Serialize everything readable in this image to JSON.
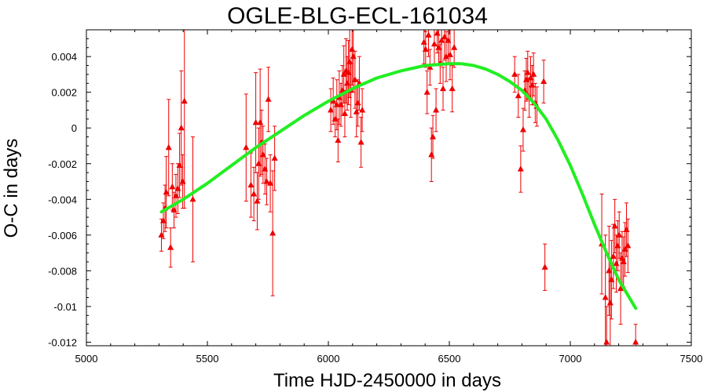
{
  "chart_data": {
    "type": "scatter",
    "title": "OGLE-BLG-ECL-161034",
    "xlabel": "Time HJD-2450000 in days",
    "ylabel": "O-C in days",
    "xlim": [
      5000,
      7500
    ],
    "ylim": [
      -0.0122,
      0.0055
    ],
    "x_ticks": [
      "5000",
      "5500",
      "6000",
      "6500",
      "7000",
      "7500"
    ],
    "y_ticks": [
      "0.004",
      "0.002",
      "0",
      "-0.002",
      "-0.004",
      "-0.006",
      "-0.008",
      "-0.01",
      "-0.012"
    ],
    "grid": false,
    "colors": {
      "points": "#ee0000",
      "fit": "#22ee22",
      "axes": "#000000"
    },
    "series": [
      {
        "marker": "triangle",
        "error_bars": true,
        "points": [
          {
            "x": 5310,
            "y": -0.006,
            "err": 0.0009
          },
          {
            "x": 5318,
            "y": -0.0052,
            "err": 0.001
          },
          {
            "x": 5325,
            "y": -0.0045,
            "err": 0.0013
          },
          {
            "x": 5330,
            "y": -0.0036,
            "err": 0.002
          },
          {
            "x": 5340,
            "y": -0.0011,
            "err": 0.0027
          },
          {
            "x": 5348,
            "y": -0.0067,
            "err": 0.0011
          },
          {
            "x": 5355,
            "y": -0.0033,
            "err": 0.0013
          },
          {
            "x": 5362,
            "y": -0.0046,
            "err": 0.001
          },
          {
            "x": 5370,
            "y": -0.0038,
            "err": 0.0012
          },
          {
            "x": 5378,
            "y": -0.0034,
            "err": 0.0014
          },
          {
            "x": 5385,
            "y": -0.0021,
            "err": 0.0018
          },
          {
            "x": 5392,
            "y": 0.0,
            "err": 0.0032
          },
          {
            "x": 5398,
            "y": -0.003,
            "err": 0.0015
          },
          {
            "x": 5405,
            "y": 0.0015,
            "err": 0.006
          },
          {
            "x": 5440,
            "y": -0.004,
            "err": 0.0035
          },
          {
            "x": 5660,
            "y": -0.0011,
            "err": 0.003
          },
          {
            "x": 5680,
            "y": -0.0032,
            "err": 0.0018
          },
          {
            "x": 5692,
            "y": -0.0037,
            "err": 0.0015
          },
          {
            "x": 5700,
            "y": 0.0003,
            "err": 0.0028
          },
          {
            "x": 5706,
            "y": -0.0041,
            "err": 0.0016
          },
          {
            "x": 5712,
            "y": -0.002,
            "err": 0.002
          },
          {
            "x": 5718,
            "y": 0.0003,
            "err": 0.003
          },
          {
            "x": 5724,
            "y": -0.0008,
            "err": 0.0018
          },
          {
            "x": 5730,
            "y": -0.0015,
            "err": 0.0016
          },
          {
            "x": 5738,
            "y": -0.0023,
            "err": 0.0014
          },
          {
            "x": 5745,
            "y": -0.003,
            "err": 0.0013
          },
          {
            "x": 5752,
            "y": 0.0016,
            "err": 0.0018
          },
          {
            "x": 5760,
            "y": -0.0031,
            "err": 0.0016
          },
          {
            "x": 5770,
            "y": -0.0059,
            "err": 0.0035
          },
          {
            "x": 5778,
            "y": -0.0017,
            "err": 0.0018
          },
          {
            "x": 6010,
            "y": 0.001,
            "err": 0.0012
          },
          {
            "x": 6020,
            "y": 0.0015,
            "err": 0.0013
          },
          {
            "x": 6028,
            "y": 0.0005,
            "err": 0.001
          },
          {
            "x": 6035,
            "y": 0.0013,
            "err": 0.0014
          },
          {
            "x": 6040,
            "y": -0.0007,
            "err": 0.0012
          },
          {
            "x": 6045,
            "y": 0.0017,
            "err": 0.0015
          },
          {
            "x": 6052,
            "y": 0.0013,
            "err": 0.0012
          },
          {
            "x": 6058,
            "y": 0.0021,
            "err": 0.0014
          },
          {
            "x": 6064,
            "y": 0.003,
            "err": 0.0016
          },
          {
            "x": 6068,
            "y": 0.0008,
            "err": 0.0013
          },
          {
            "x": 6073,
            "y": 0.0032,
            "err": 0.0018
          },
          {
            "x": 6078,
            "y": 0.0025,
            "err": 0.0015
          },
          {
            "x": 6083,
            "y": 0.0031,
            "err": 0.0018
          },
          {
            "x": 6088,
            "y": 0.0037,
            "err": 0.002
          },
          {
            "x": 6093,
            "y": 0.0021,
            "err": 0.0015
          },
          {
            "x": 6098,
            "y": 0.0044,
            "err": 0.002
          },
          {
            "x": 6103,
            "y": 0.004,
            "err": 0.002
          },
          {
            "x": 6110,
            "y": 0.0027,
            "err": 0.0016
          },
          {
            "x": 6116,
            "y": 0.0009,
            "err": 0.0014
          },
          {
            "x": 6122,
            "y": 0.0014,
            "err": 0.0013
          },
          {
            "x": 6128,
            "y": 0.0025,
            "err": 0.0015
          },
          {
            "x": 6135,
            "y": -0.0008,
            "err": 0.0014
          },
          {
            "x": 6140,
            "y": 0.001,
            "err": 0.0012
          },
          {
            "x": 6395,
            "y": 0.0048,
            "err": 0.0012
          },
          {
            "x": 6402,
            "y": 0.0044,
            "err": 0.001
          },
          {
            "x": 6408,
            "y": 0.002,
            "err": 0.0012
          },
          {
            "x": 6414,
            "y": 0.0052,
            "err": 0.0012
          },
          {
            "x": 6420,
            "y": 0.0034,
            "err": 0.001
          },
          {
            "x": 6426,
            "y": -0.0015,
            "err": 0.0015
          },
          {
            "x": 6432,
            "y": -0.0005,
            "err": 0.0012
          },
          {
            "x": 6438,
            "y": 0.0047,
            "err": 0.0011
          },
          {
            "x": 6445,
            "y": 0.001,
            "err": 0.0012
          },
          {
            "x": 6450,
            "y": 0.0053,
            "err": 0.0011
          },
          {
            "x": 6456,
            "y": 0.0045,
            "err": 0.001
          },
          {
            "x": 6462,
            "y": 0.0036,
            "err": 0.0011
          },
          {
            "x": 6468,
            "y": 0.0049,
            "err": 0.0012
          },
          {
            "x": 6474,
            "y": 0.0022,
            "err": 0.0012
          },
          {
            "x": 6480,
            "y": 0.0051,
            "err": 0.0013
          },
          {
            "x": 6487,
            "y": 0.004,
            "err": 0.0014
          },
          {
            "x": 6495,
            "y": 0.0049,
            "err": 0.0013
          },
          {
            "x": 6503,
            "y": 0.0041,
            "err": 0.0014
          },
          {
            "x": 6512,
            "y": 0.0022,
            "err": 0.0013
          },
          {
            "x": 6520,
            "y": 0.0045,
            "err": 0.0011
          },
          {
            "x": 6770,
            "y": 0.003,
            "err": 0.001
          },
          {
            "x": 6785,
            "y": 0.0018,
            "err": 0.0012
          },
          {
            "x": 6795,
            "y": -0.0023,
            "err": 0.0013
          },
          {
            "x": 6805,
            "y": -0.0001,
            "err": 0.0012
          },
          {
            "x": 6812,
            "y": 0.0021,
            "err": 0.0011
          },
          {
            "x": 6818,
            "y": 0.0027,
            "err": 0.0012
          },
          {
            "x": 6824,
            "y": 0.0031,
            "err": 0.0012
          },
          {
            "x": 6830,
            "y": 0.0017,
            "err": 0.0011
          },
          {
            "x": 6836,
            "y": 0.0028,
            "err": 0.0012
          },
          {
            "x": 6842,
            "y": 0.0024,
            "err": 0.0011
          },
          {
            "x": 6848,
            "y": 0.003,
            "err": 0.0012
          },
          {
            "x": 6855,
            "y": 0.0014,
            "err": 0.0011
          },
          {
            "x": 6862,
            "y": 0.0012,
            "err": 0.0011
          },
          {
            "x": 6890,
            "y": 0.0026,
            "err": 0.0012
          },
          {
            "x": 6895,
            "y": -0.0078,
            "err": 0.0013
          },
          {
            "x": 7130,
            "y": -0.0065,
            "err": 0.0028
          },
          {
            "x": 7145,
            "y": -0.0095,
            "err": 0.0035
          },
          {
            "x": 7150,
            "y": -0.012,
            "err": 0.002
          },
          {
            "x": 7160,
            "y": -0.008,
            "err": 0.0025
          },
          {
            "x": 7165,
            "y": -0.0098,
            "err": 0.0025
          },
          {
            "x": 7170,
            "y": -0.0085,
            "err": 0.0022
          },
          {
            "x": 7178,
            "y": -0.0072,
            "err": 0.0018
          },
          {
            "x": 7184,
            "y": -0.0055,
            "err": 0.0015
          },
          {
            "x": 7190,
            "y": -0.0076,
            "err": 0.0016
          },
          {
            "x": 7196,
            "y": -0.0066,
            "err": 0.0014
          },
          {
            "x": 7202,
            "y": -0.006,
            "err": 0.0013
          },
          {
            "x": 7208,
            "y": -0.009,
            "err": 0.002
          },
          {
            "x": 7214,
            "y": -0.0073,
            "err": 0.0015
          },
          {
            "x": 7220,
            "y": -0.0075,
            "err": 0.0014
          },
          {
            "x": 7226,
            "y": -0.0068,
            "err": 0.0015
          },
          {
            "x": 7232,
            "y": -0.0057,
            "err": 0.0015
          },
          {
            "x": 7238,
            "y": -0.0066,
            "err": 0.0015
          },
          {
            "x": 7270,
            "y": -0.012,
            "err": 0.001
          }
        ]
      },
      {
        "type": "line",
        "x": [
          5310,
          5400,
          5500,
          5600,
          5700,
          5800,
          5900,
          6000,
          6100,
          6200,
          6300,
          6400,
          6500,
          6550,
          6600,
          6650,
          6700,
          6750,
          6800,
          6850,
          6900,
          6950,
          7000,
          7050,
          7100,
          7150,
          7200,
          7270
        ],
        "y": [
          -0.0047,
          -0.004,
          -0.0031,
          -0.0021,
          -0.0011,
          -0.0002,
          0.0007,
          0.0015,
          0.0022,
          0.0028,
          0.0032,
          0.0035,
          0.0036,
          0.0036,
          0.0035,
          0.0033,
          0.003,
          0.0026,
          0.0021,
          0.0014,
          0.0005,
          -0.0007,
          -0.0021,
          -0.0037,
          -0.0054,
          -0.007,
          -0.0085,
          -0.0101
        ]
      }
    ]
  }
}
